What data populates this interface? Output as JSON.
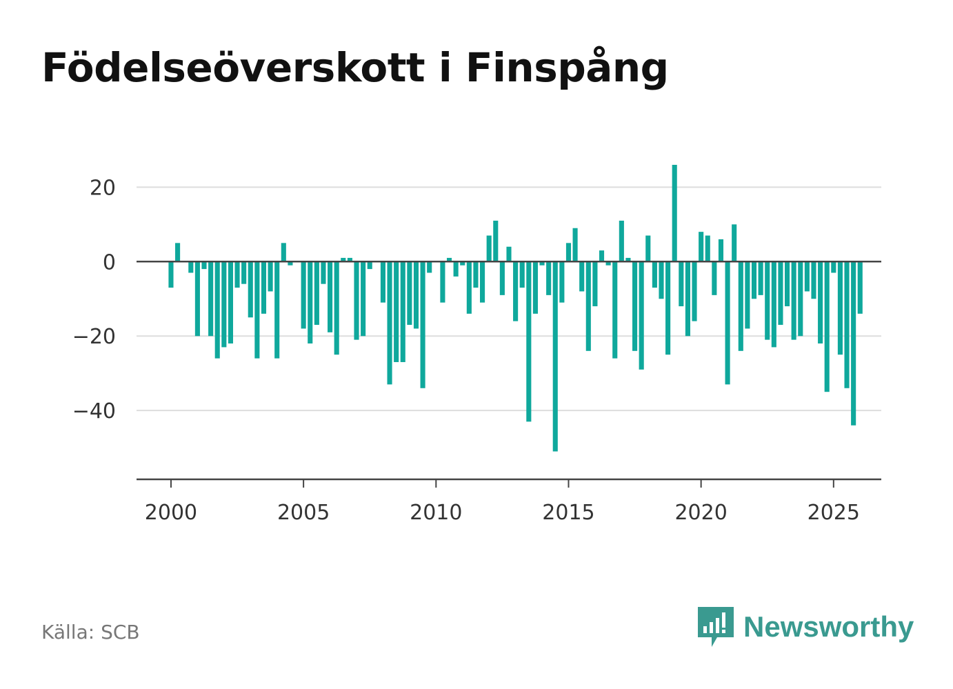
{
  "title": "Födelseöverskott i Finspång",
  "source": "Källa: SCB",
  "brand": {
    "name": "Newsworthy",
    "icon": "newsworthy-logo-icon",
    "color": "#3a9a90"
  },
  "chart_data": {
    "type": "bar",
    "title": "Födelseöverskott i Finspång",
    "xlabel": "",
    "ylabel": "",
    "bar_color": "#0fa89c",
    "grid": true,
    "legend": "none",
    "x_ticks": [
      2000,
      2005,
      2010,
      2015,
      2020,
      2025
    ],
    "x_tick_labels": [
      "2000",
      "2005",
      "2010",
      "2015",
      "2020",
      "2025"
    ],
    "y_ticks": [
      20,
      0,
      -20,
      -40
    ],
    "y_tick_labels": [
      "20",
      "0",
      "−20",
      "−40"
    ],
    "xlim": [
      1998.7,
      2026.8
    ],
    "ylim": [
      -58.5,
      26
    ],
    "start": [
      2000,
      1
    ],
    "periods_per_year": 4,
    "values": [
      -7,
      5,
      0,
      -3,
      -20,
      -2,
      -20,
      -26,
      -23,
      -22,
      -7,
      -6,
      -15,
      -26,
      -14,
      -8,
      -26,
      5,
      -1,
      0,
      -18,
      -22,
      -17,
      -6,
      -19,
      -25,
      1,
      1,
      -21,
      -20,
      -2,
      0,
      -11,
      -33,
      -27,
      -27,
      -17,
      -18,
      -34,
      -3,
      0,
      -11,
      1,
      -4,
      -1,
      -14,
      -7,
      -11,
      7,
      11,
      -9,
      4,
      -16,
      -7,
      -43,
      -14,
      -1,
      -9,
      -51,
      -11,
      5,
      9,
      -8,
      -24,
      -12,
      3,
      -1,
      -26,
      11,
      1,
      -24,
      -29,
      7,
      -7,
      -10,
      -25,
      26,
      -12,
      -20,
      -16,
      8,
      7,
      -9,
      6,
      -33,
      10,
      -24,
      -18,
      -10,
      -9,
      -21,
      -23,
      -17,
      -12,
      -21,
      -20,
      -8,
      -10,
      -22,
      -35,
      -3,
      -25,
      -34,
      -44,
      -14
    ]
  }
}
